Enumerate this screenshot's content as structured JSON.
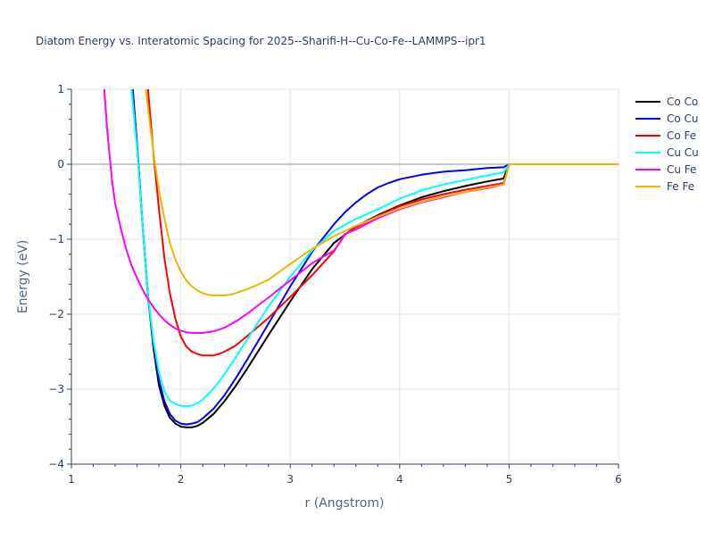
{
  "chart_data": {
    "type": "line",
    "title": "Diatom Energy vs. Interatomic Spacing for 2025--Sharifi-H--Cu-Co-Fe--LAMMPS--ipr1",
    "xlabel": "r (Angstrom)",
    "ylabel": "Energy (eV)",
    "xlim": [
      1,
      6
    ],
    "ylim": [
      -4,
      1
    ],
    "xticks": [
      1,
      2,
      3,
      4,
      5,
      6
    ],
    "yticks": [
      1,
      0,
      -1,
      -2,
      -3,
      -4
    ],
    "ytick_labels": [
      "1",
      "0",
      "−1",
      "−2",
      "−3",
      "−4"
    ],
    "grid": true,
    "legend_position": "top-right",
    "series": [
      {
        "name": "Co Co",
        "color": "#000000",
        "x": [
          1.56,
          1.6,
          1.65,
          1.7,
          1.75,
          1.8,
          1.85,
          1.9,
          1.95,
          2.0,
          2.05,
          2.1,
          2.15,
          2.2,
          2.3,
          2.4,
          2.5,
          2.6,
          2.8,
          3.0,
          3.2,
          3.4,
          3.6,
          3.8,
          4.0,
          4.2,
          4.4,
          4.6,
          4.8,
          4.95,
          5.0,
          5.5,
          6.0
        ],
        "y": [
          1.0,
          0.25,
          -0.8,
          -1.75,
          -2.45,
          -2.95,
          -3.22,
          -3.38,
          -3.46,
          -3.5,
          -3.51,
          -3.51,
          -3.49,
          -3.45,
          -3.33,
          -3.16,
          -2.96,
          -2.74,
          -2.28,
          -1.83,
          -1.4,
          -1.05,
          -0.83,
          -0.68,
          -0.55,
          -0.44,
          -0.36,
          -0.29,
          -0.23,
          -0.19,
          0.0,
          0.0,
          0.0
        ]
      },
      {
        "name": "Co Cu",
        "color": "#0000ee",
        "x": [
          1.56,
          1.6,
          1.65,
          1.7,
          1.75,
          1.8,
          1.85,
          1.9,
          1.95,
          2.0,
          2.05,
          2.1,
          2.15,
          2.2,
          2.3,
          2.4,
          2.5,
          2.6,
          2.8,
          3.0,
          3.2,
          3.4,
          3.5,
          3.6,
          3.7,
          3.8,
          3.9,
          4.0,
          4.2,
          4.4,
          4.6,
          4.8,
          4.95,
          5.0,
          5.5,
          6.0
        ],
        "y": [
          1.0,
          0.25,
          -0.8,
          -1.75,
          -2.4,
          -2.88,
          -3.16,
          -3.33,
          -3.42,
          -3.46,
          -3.47,
          -3.46,
          -3.44,
          -3.39,
          -3.26,
          -3.08,
          -2.86,
          -2.62,
          -2.13,
          -1.63,
          -1.17,
          -0.8,
          -0.64,
          -0.51,
          -0.4,
          -0.31,
          -0.25,
          -0.2,
          -0.14,
          -0.1,
          -0.08,
          -0.05,
          -0.04,
          0.0,
          0.0,
          0.0
        ]
      },
      {
        "name": "Co Fe",
        "color": "#ff0000",
        "x": [
          1.7,
          1.75,
          1.8,
          1.85,
          1.9,
          1.95,
          2.0,
          2.05,
          2.1,
          2.15,
          2.2,
          2.25,
          2.3,
          2.35,
          2.4,
          2.5,
          2.6,
          2.8,
          3.0,
          3.2,
          3.4,
          3.5,
          3.6,
          3.8,
          4.0,
          4.2,
          4.4,
          4.6,
          4.8,
          4.95,
          5.0,
          5.5,
          6.0
        ],
        "y": [
          1.0,
          0.15,
          -0.6,
          -1.25,
          -1.72,
          -2.06,
          -2.3,
          -2.43,
          -2.5,
          -2.53,
          -2.55,
          -2.55,
          -2.55,
          -2.53,
          -2.5,
          -2.42,
          -2.3,
          -2.05,
          -1.77,
          -1.48,
          -1.16,
          -0.94,
          -0.84,
          -0.69,
          -0.56,
          -0.47,
          -0.4,
          -0.34,
          -0.29,
          -0.25,
          0.0,
          0.0,
          0.0
        ]
      },
      {
        "name": "Cu Cu",
        "color": "#00ffff",
        "x": [
          1.55,
          1.6,
          1.65,
          1.7,
          1.75,
          1.8,
          1.85,
          1.9,
          1.95,
          2.0,
          2.05,
          2.1,
          2.15,
          2.2,
          2.3,
          2.4,
          2.5,
          2.6,
          2.8,
          3.0,
          3.2,
          3.4,
          3.6,
          3.8,
          4.0,
          4.2,
          4.4,
          4.6,
          4.8,
          4.95,
          5.0,
          5.5,
          6.0
        ],
        "y": [
          1.0,
          0.2,
          -0.8,
          -1.75,
          -2.35,
          -2.78,
          -3.03,
          -3.15,
          -3.2,
          -3.22,
          -3.23,
          -3.22,
          -3.19,
          -3.14,
          -2.99,
          -2.8,
          -2.58,
          -2.35,
          -1.9,
          -1.5,
          -1.15,
          -0.89,
          -0.73,
          -0.6,
          -0.46,
          -0.35,
          -0.27,
          -0.21,
          -0.15,
          -0.11,
          0.0,
          0.0,
          0.0
        ]
      },
      {
        "name": "Cu Fe",
        "color": "#ff00ff",
        "x": [
          1.3,
          1.33,
          1.37,
          1.4,
          1.45,
          1.5,
          1.55,
          1.6,
          1.65,
          1.7,
          1.75,
          1.8,
          1.85,
          1.9,
          1.95,
          2.0,
          2.05,
          2.1,
          2.15,
          2.2,
          2.3,
          2.4,
          2.5,
          2.6,
          2.8,
          3.0,
          3.2,
          3.4,
          3.45,
          3.5,
          3.6,
          3.8,
          4.0,
          4.2,
          4.4,
          4.6,
          4.8,
          4.95,
          5.0,
          5.5,
          6.0
        ],
        "y": [
          1.0,
          0.4,
          -0.2,
          -0.52,
          -0.85,
          -1.13,
          -1.35,
          -1.52,
          -1.67,
          -1.8,
          -1.91,
          -2.0,
          -2.08,
          -2.14,
          -2.19,
          -2.22,
          -2.24,
          -2.25,
          -2.25,
          -2.25,
          -2.23,
          -2.18,
          -2.1,
          -2.0,
          -1.78,
          -1.55,
          -1.32,
          -1.15,
          -1.05,
          -0.93,
          -0.87,
          -0.72,
          -0.6,
          -0.51,
          -0.44,
          -0.37,
          -0.32,
          -0.27,
          0.0,
          0.0,
          0.0
        ]
      },
      {
        "name": "Fe Fe",
        "color": "#e6b800",
        "x": [
          1.68,
          1.72,
          1.76,
          1.8,
          1.85,
          1.9,
          1.95,
          2.0,
          2.05,
          2.1,
          2.15,
          2.2,
          2.25,
          2.3,
          2.35,
          2.4,
          2.45,
          2.5,
          2.6,
          2.7,
          2.8,
          3.0,
          3.2,
          3.4,
          3.6,
          3.8,
          4.0,
          4.2,
          4.4,
          4.6,
          4.8,
          4.95,
          5.0,
          5.5,
          6.0
        ],
        "y": [
          1.0,
          0.5,
          0.05,
          -0.35,
          -0.72,
          -1.05,
          -1.27,
          -1.43,
          -1.55,
          -1.63,
          -1.68,
          -1.72,
          -1.74,
          -1.75,
          -1.75,
          -1.75,
          -1.74,
          -1.72,
          -1.67,
          -1.61,
          -1.54,
          -1.33,
          -1.13,
          -0.96,
          -0.82,
          -0.7,
          -0.59,
          -0.5,
          -0.43,
          -0.37,
          -0.31,
          -0.27,
          0.0,
          0.0,
          0.0
        ]
      }
    ]
  }
}
